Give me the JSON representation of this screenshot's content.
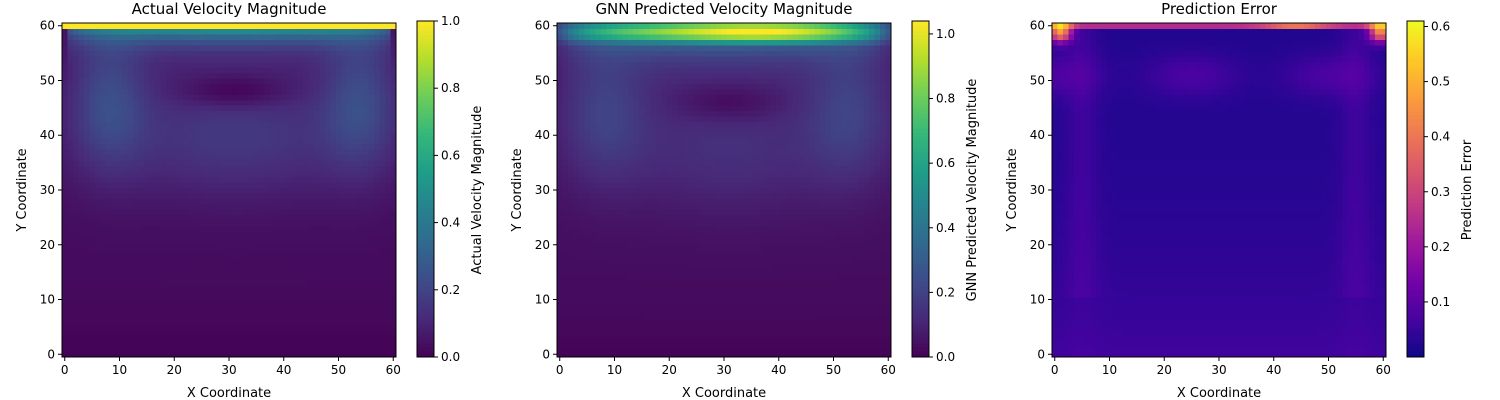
{
  "figure": {
    "panels": [
      {
        "title": "Actual Velocity Magnitude",
        "xlabel": "X Coordinate",
        "ylabel": "Y Coordinate",
        "colorbar_label": "Actual Velocity Magnitude"
      },
      {
        "title": "GNN Predicted Velocity Magnitude",
        "xlabel": "X Coordinate",
        "ylabel": "Y Coordinate",
        "colorbar_label": "GNN Predicted Velocity Magnitude"
      },
      {
        "title": "Prediction Error",
        "xlabel": "X Coordinate",
        "ylabel": "Y Coordinate",
        "colorbar_label": "Prediction Error"
      }
    ]
  },
  "chart_data": [
    {
      "type": "heatmap",
      "title": "Actual Velocity Magnitude",
      "xlabel": "X Coordinate",
      "ylabel": "Y Coordinate",
      "colormap": "viridis",
      "colorbar_label": "Actual Velocity Magnitude",
      "xlim": [
        0,
        60
      ],
      "ylim": [
        0,
        60
      ],
      "x_ticks": [
        0,
        10,
        20,
        30,
        40,
        50,
        60
      ],
      "y_ticks": [
        0,
        10,
        20,
        30,
        40,
        50,
        60
      ],
      "colorbar_range": [
        0.0,
        1.0
      ],
      "colorbar_ticks": [
        "0.0",
        "0.2",
        "0.4",
        "0.6",
        "0.8",
        "1.0"
      ],
      "field_description": "lid-driven cavity: top row at 1.0, band decaying below lid, low-velocity vortex core near (31, 48), bottom near 0",
      "lid_value": 1.0,
      "vortex_center": [
        31,
        48
      ]
    },
    {
      "type": "heatmap",
      "title": "GNN Predicted Velocity Magnitude",
      "xlabel": "X Coordinate",
      "ylabel": "Y Coordinate",
      "colormap": "viridis",
      "colorbar_label": "GNN Predicted Velocity Magnitude",
      "xlim": [
        0,
        60
      ],
      "ylim": [
        0,
        60
      ],
      "x_ticks": [
        0,
        10,
        20,
        30,
        40,
        50,
        60
      ],
      "y_ticks": [
        0,
        10,
        20,
        30,
        40,
        50,
        60
      ],
      "colorbar_range": [
        0.0,
        1.04
      ],
      "colorbar_ticks": [
        "0.0",
        "0.2",
        "0.4",
        "0.6",
        "0.8",
        "1.0"
      ],
      "field_description": "smoothed prediction: peak about 1.0 at y about 59 near x about 40, vortex core near (31, 46)",
      "peak_value": 1.04,
      "vortex_center": [
        31,
        46
      ]
    },
    {
      "type": "heatmap",
      "title": "Prediction Error",
      "xlabel": "X Coordinate",
      "ylabel": "Y Coordinate",
      "colormap": "plasma",
      "colorbar_label": "Prediction Error",
      "xlim": [
        0,
        60
      ],
      "ylim": [
        0,
        60
      ],
      "x_ticks": [
        0,
        10,
        20,
        30,
        40,
        50,
        60
      ],
      "y_ticks": [
        0,
        10,
        20,
        30,
        40,
        50,
        60
      ],
      "colorbar_range": [
        0.0,
        0.61
      ],
      "colorbar_ticks": [
        "0.1",
        "0.2",
        "0.3",
        "0.4",
        "0.5",
        "0.6"
      ],
      "field_description": "errors up to about 0.6 at top corners, about 0.25 along the lid row, near zero elsewhere",
      "max_error": 0.61
    }
  ]
}
